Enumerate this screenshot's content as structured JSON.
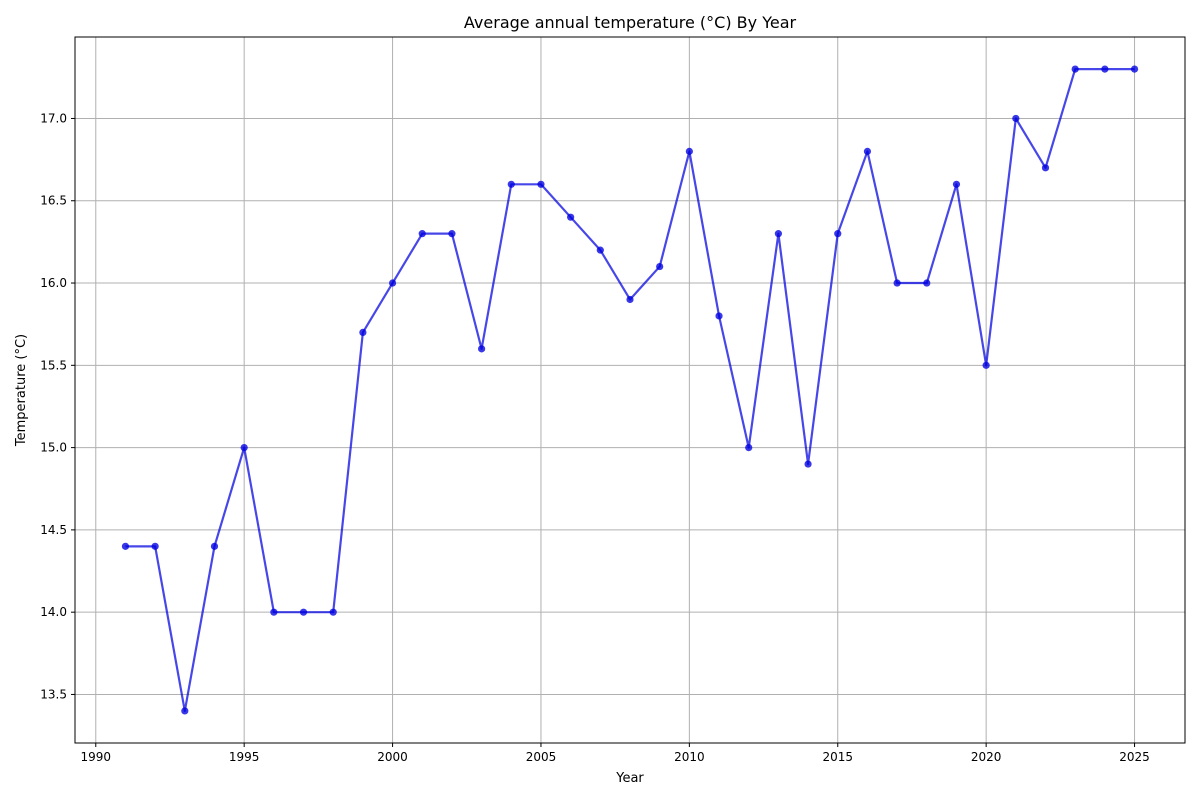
{
  "chart_data": {
    "type": "line",
    "title": "Average annual temperature (°C) By Year",
    "xlabel": "Year",
    "ylabel": "Temperature (°C)",
    "xlim": [
      1989.3,
      2026.7
    ],
    "ylim": [
      13.205,
      17.495
    ],
    "xticks": [
      1990,
      1995,
      2000,
      2005,
      2010,
      2015,
      2020,
      2025
    ],
    "yticks": [
      13.5,
      14.0,
      14.5,
      15.0,
      15.5,
      16.0,
      16.5,
      17.0
    ],
    "grid": true,
    "line_color": "#0000e0",
    "series": [
      {
        "x": [
          1991,
          1992,
          1993,
          1994,
          1995,
          1996,
          1997,
          1998,
          1999,
          2000,
          2001,
          2002,
          2003,
          2004,
          2005,
          2006,
          2007,
          2008,
          2009,
          2010,
          2011,
          2012,
          2013,
          2014,
          2015,
          2016,
          2017,
          2018,
          2019,
          2020,
          2021,
          2022,
          2023,
          2024,
          2025
        ],
        "y": [
          14.4,
          14.4,
          13.4,
          14.4,
          15.0,
          14.0,
          14.0,
          14.0,
          15.7,
          16.0,
          16.3,
          16.3,
          15.6,
          16.6,
          16.6,
          16.4,
          16.2,
          15.9,
          16.1,
          16.8,
          15.8,
          15.0,
          16.3,
          14.9,
          16.3,
          16.8,
          16.0,
          16.0,
          16.6,
          15.5,
          17.0,
          16.7,
          17.3,
          17.3,
          17.3
        ]
      }
    ]
  }
}
